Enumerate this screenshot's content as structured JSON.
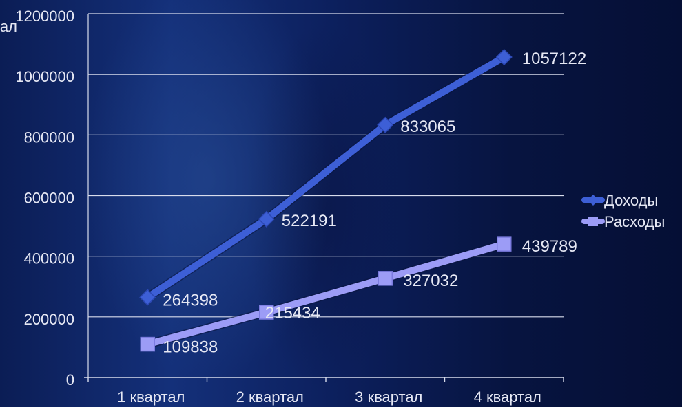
{
  "colors": {
    "background": "#06123f",
    "gridline": "#d8dcec",
    "axis_text": "#e6e8f4",
    "income": "#3d5fd6",
    "expenses": "#9c9cf6"
  },
  "chart_data": {
    "type": "line",
    "title": "",
    "ylabel_fragment": "ал",
    "xlabel": "",
    "categories": [
      "1 квартал",
      "2 квартал",
      "3 квартал",
      "4 квартал"
    ],
    "ylim": [
      0,
      1200000
    ],
    "yticks": [
      0,
      200000,
      400000,
      600000,
      800000,
      1000000,
      1200000
    ],
    "ytick_labels": [
      "0",
      "200000",
      "400000",
      "600000",
      "800000",
      "1000000",
      "1200000"
    ],
    "grid": true,
    "legend_position": "right",
    "series": [
      {
        "name": "Доходы",
        "values": [
          264398,
          522191,
          833065,
          1057122
        ],
        "value_labels": [
          "264398",
          "522191",
          "833065",
          "1057122"
        ],
        "marker": "diamond",
        "color": "#3d5fd6"
      },
      {
        "name": "Расходы",
        "values": [
          109838,
          215434,
          327032,
          439789
        ],
        "value_labels": [
          "109838",
          "215434",
          "327032",
          "439789"
        ],
        "marker": "square",
        "color": "#9c9cf6"
      }
    ]
  }
}
